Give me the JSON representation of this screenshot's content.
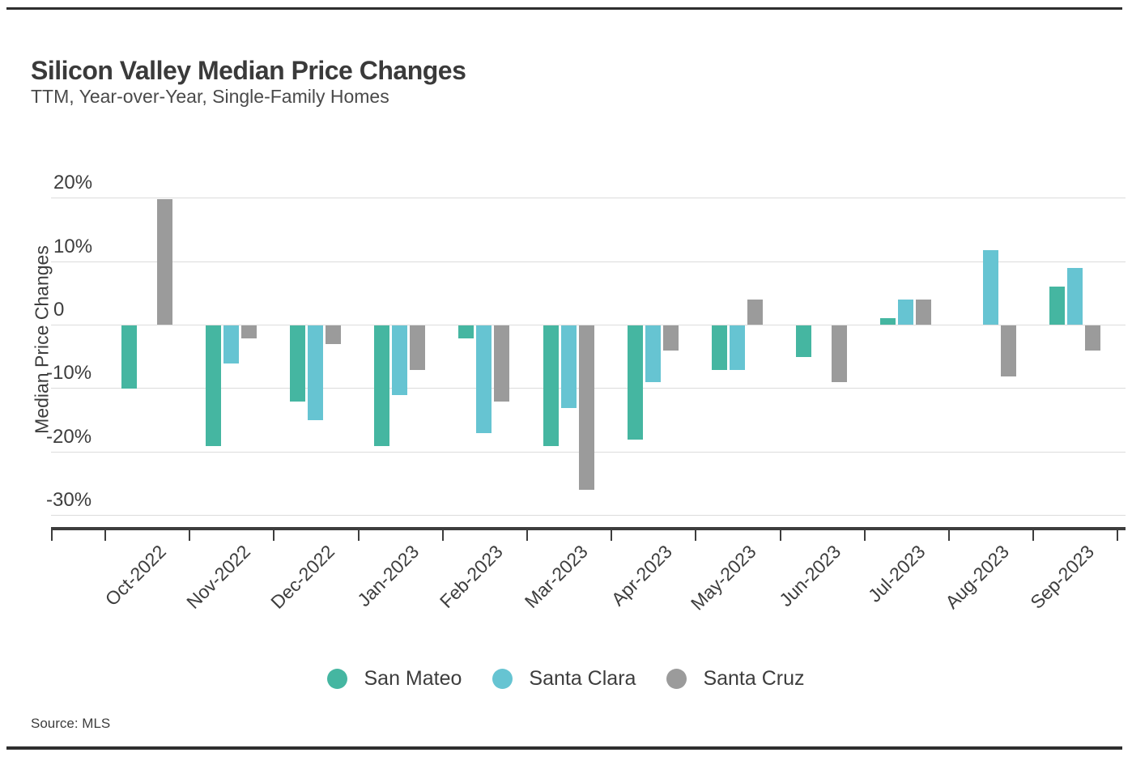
{
  "header": {
    "title": "Silicon Valley Median Price Changes",
    "subtitle": "TTM, Year-over-Year, Single-Family Homes"
  },
  "source": "Source: MLS",
  "chart_data": {
    "type": "bar",
    "title": "Silicon Valley Median Price Changes",
    "subtitle": "TTM, Year-over-Year, Single-Family Homes",
    "ylabel": "Median Price Changes",
    "xlabel": "",
    "unit": "%",
    "grid": true,
    "legend_position": "bottom",
    "ylim": [
      -32,
      22
    ],
    "categories": [
      "Oct-2022",
      "Nov-2022",
      "Dec-2022",
      "Jan-2023",
      "Feb-2023",
      "Mar-2023",
      "Apr-2023",
      "May-2023",
      "Jun-2023",
      "Jul-2023",
      "Aug-2023",
      "Sep-2023"
    ],
    "yticks": [
      {
        "value": 20,
        "label": "20%"
      },
      {
        "value": 10,
        "label": "10%"
      },
      {
        "value": 0,
        "label": "0"
      },
      {
        "value": -10,
        "label": "-10%"
      },
      {
        "value": -20,
        "label": "-20%"
      },
      {
        "value": -30,
        "label": "-30%"
      }
    ],
    "series": [
      {
        "name": "San Mateo",
        "color": "#45b6a1",
        "texture": "light_dots",
        "values": [
          -10,
          -19,
          -12,
          -19,
          -2,
          -19,
          -18,
          -7,
          -5,
          1,
          0,
          6
        ]
      },
      {
        "name": "Santa Clara",
        "color": "#66c4d2",
        "texture": "light_dots",
        "values": [
          0,
          -6,
          -15,
          -11,
          -17,
          -13,
          -9,
          -7,
          0,
          4,
          11.8,
          9
        ]
      },
      {
        "name": "Santa Cruz",
        "color": "#9b9b9b",
        "texture": "dark_dots",
        "values": [
          19.8,
          -2,
          -3,
          -7,
          -12,
          -26,
          -4,
          4,
          -9,
          4,
          -8,
          -4
        ]
      }
    ]
  }
}
